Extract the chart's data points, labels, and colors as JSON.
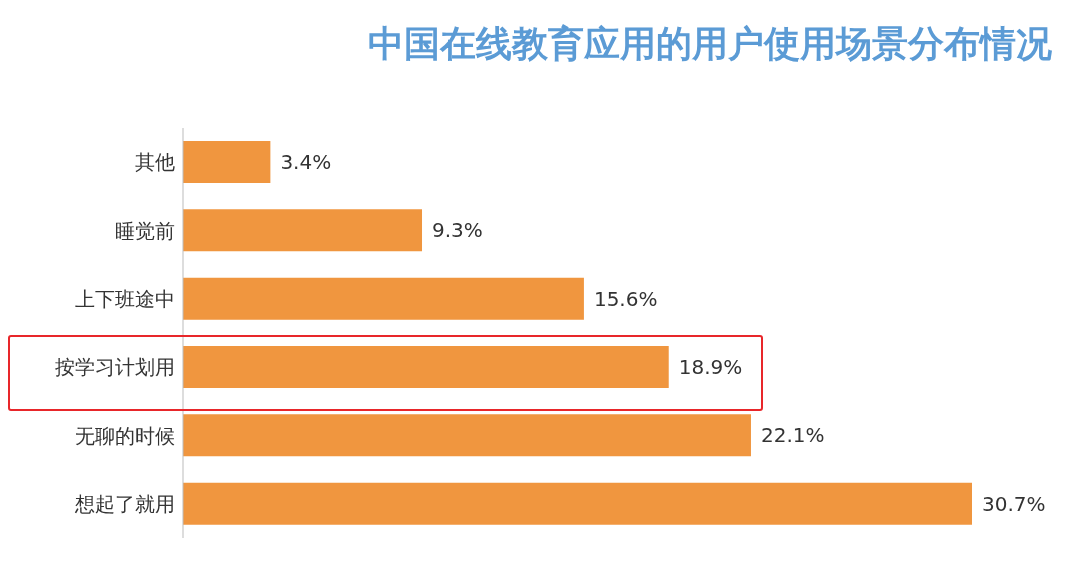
{
  "chart_data": {
    "type": "bar",
    "orientation": "horizontal",
    "title": "中国在线教育应用的用户使用场景分布情况",
    "categories": [
      "其他",
      "睡觉前",
      "上下班途中",
      "按学习计划用",
      "无聊的时候",
      "想起了就用"
    ],
    "values": [
      3.4,
      9.3,
      15.6,
      18.9,
      22.1,
      30.7
    ],
    "value_labels": [
      "3.4%",
      "9.3%",
      "15.6%",
      "18.9%",
      "22.1%",
      "30.7%"
    ],
    "color": "#f0963f"
  }
}
